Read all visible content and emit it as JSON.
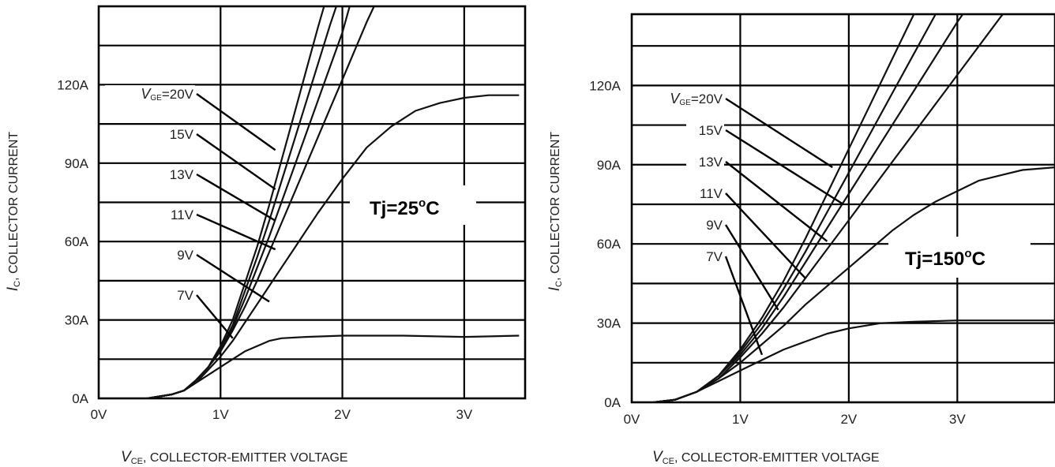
{
  "chart_data": [
    {
      "type": "line",
      "temperature_label": {
        "main": "Tj=25",
        "sup": "o",
        "unit": "C"
      },
      "xlabel": {
        "sym": "V",
        "sub": "CE",
        "text": ", COLLECTOR-EMITTER VOLTAGE"
      },
      "ylabel": {
        "sym": "I",
        "sub": "C",
        "text": ", COLLECTOR CURRENT"
      },
      "xlim": [
        0,
        3.5
      ],
      "ylim": [
        0,
        150
      ],
      "x_ticks": [
        {
          "v": 0,
          "label": "0V"
        },
        {
          "v": 1,
          "label": "1V"
        },
        {
          "v": 2,
          "label": "2V"
        },
        {
          "v": 3,
          "label": "3V"
        }
      ],
      "y_ticks": [
        {
          "v": 0,
          "label": "0A"
        },
        {
          "v": 30,
          "label": "30A"
        },
        {
          "v": 60,
          "label": "60A"
        },
        {
          "v": 90,
          "label": "90A"
        },
        {
          "v": 120,
          "label": "120A"
        }
      ],
      "grid_x": [
        1,
        2,
        3
      ],
      "grid_y": [
        15,
        30,
        45,
        60,
        75,
        90,
        105,
        120,
        135
      ],
      "series": [
        {
          "name": "20V",
          "points": [
            [
              0.4,
              0
            ],
            [
              0.6,
              1.5
            ],
            [
              0.7,
              3
            ],
            [
              0.8,
              7
            ],
            [
              0.9,
              12
            ],
            [
              1.0,
              20
            ],
            [
              1.1,
              30
            ],
            [
              1.2,
              44
            ],
            [
              1.3,
              58
            ],
            [
              1.4,
              74
            ],
            [
              1.5,
              91
            ],
            [
              1.6,
              108
            ],
            [
              1.7,
              125
            ],
            [
              1.8,
              142
            ],
            [
              1.85,
              150
            ]
          ]
        },
        {
          "name": "15V",
          "points": [
            [
              0.4,
              0
            ],
            [
              0.6,
              1.5
            ],
            [
              0.7,
              3
            ],
            [
              0.8,
              7
            ],
            [
              0.9,
              12
            ],
            [
              1.0,
              19
            ],
            [
              1.1,
              28
            ],
            [
              1.2,
              41
            ],
            [
              1.3,
              54
            ],
            [
              1.4,
              68
            ],
            [
              1.5,
              83
            ],
            [
              1.6,
              98
            ],
            [
              1.7,
              113
            ],
            [
              1.8,
              128
            ],
            [
              1.9,
              143
            ],
            [
              1.95,
              150
            ]
          ]
        },
        {
          "name": "13V",
          "points": [
            [
              0.4,
              0
            ],
            [
              0.6,
              1.5
            ],
            [
              0.7,
              3
            ],
            [
              0.8,
              7
            ],
            [
              0.9,
              12
            ],
            [
              1.0,
              19
            ],
            [
              1.1,
              27
            ],
            [
              1.2,
              38
            ],
            [
              1.3,
              50
            ],
            [
              1.4,
              62
            ],
            [
              1.5,
              75
            ],
            [
              1.6,
              88
            ],
            [
              1.7,
              101
            ],
            [
              1.8,
              114
            ],
            [
              1.9,
              127
            ],
            [
              2.0,
              140
            ],
            [
              2.06,
              150
            ]
          ]
        },
        {
          "name": "11V",
          "points": [
            [
              0.4,
              0
            ],
            [
              0.6,
              1.5
            ],
            [
              0.7,
              3
            ],
            [
              0.8,
              7
            ],
            [
              0.9,
              12
            ],
            [
              1.0,
              18
            ],
            [
              1.1,
              26
            ],
            [
              1.2,
              35
            ],
            [
              1.3,
              45
            ],
            [
              1.4,
              56
            ],
            [
              1.5,
              67
            ],
            [
              1.6,
              78
            ],
            [
              1.7,
              89
            ],
            [
              1.8,
              100
            ],
            [
              1.9,
              111
            ],
            [
              2.0,
              122
            ],
            [
              2.1,
              133
            ],
            [
              2.2,
              144
            ],
            [
              2.26,
              150
            ]
          ]
        },
        {
          "name": "9V",
          "points": [
            [
              0.4,
              0
            ],
            [
              0.6,
              1.5
            ],
            [
              0.7,
              3
            ],
            [
              0.8,
              6
            ],
            [
              0.9,
              11
            ],
            [
              1.0,
              16
            ],
            [
              1.1,
              22
            ],
            [
              1.2,
              29
            ],
            [
              1.3,
              36
            ],
            [
              1.4,
              43
            ],
            [
              1.5,
              50
            ],
            [
              1.6,
              57
            ],
            [
              1.7,
              64
            ],
            [
              1.8,
              71
            ],
            [
              2.0,
              84
            ],
            [
              2.2,
              96
            ],
            [
              2.4,
              104
            ],
            [
              2.6,
              110
            ],
            [
              2.8,
              113
            ],
            [
              3.0,
              115
            ],
            [
              3.2,
              116
            ],
            [
              3.45,
              116
            ]
          ]
        },
        {
          "name": "7V",
          "points": [
            [
              0.4,
              0
            ],
            [
              0.6,
              1.5
            ],
            [
              0.7,
              3
            ],
            [
              0.8,
              6
            ],
            [
              0.9,
              9
            ],
            [
              1.0,
              12
            ],
            [
              1.1,
              15
            ],
            [
              1.2,
              18
            ],
            [
              1.3,
              20
            ],
            [
              1.4,
              22
            ],
            [
              1.5,
              23
            ],
            [
              1.7,
              23.5
            ],
            [
              2.0,
              24
            ],
            [
              2.5,
              24
            ],
            [
              3.0,
              23.5
            ],
            [
              3.45,
              24
            ]
          ]
        }
      ],
      "labels": [
        {
          "prefix": {
            "sym": "V",
            "sub": "GE",
            "eq": "="
          },
          "text": "20V",
          "leader_end": [
            1.45,
            95
          ]
        },
        {
          "text": "15V",
          "leader_end": [
            1.45,
            80
          ]
        },
        {
          "text": "13V",
          "leader_end": [
            1.45,
            68
          ]
        },
        {
          "text": "11V",
          "leader_end": [
            1.45,
            57
          ]
        },
        {
          "text": "9V",
          "leader_end": [
            1.4,
            37
          ]
        },
        {
          "text": "7V",
          "leader_end": [
            1.1,
            23
          ]
        }
      ]
    },
    {
      "type": "line",
      "temperature_label": {
        "main": "Tj=150",
        "sup": "o",
        "unit": "C"
      },
      "xlabel": {
        "sym": "V",
        "sub": "CE",
        "text": ", COLLECTOR-EMITTER VOLTAGE"
      },
      "ylabel": {
        "sym": "I",
        "sub": "C",
        "text": ", COLLECTOR CURRENT"
      },
      "xlim": [
        0,
        3.9
      ],
      "ylim": [
        0,
        147
      ],
      "x_ticks": [
        {
          "v": 0,
          "label": "0V"
        },
        {
          "v": 1,
          "label": "1V"
        },
        {
          "v": 2,
          "label": "2V"
        },
        {
          "v": 3,
          "label": "3V"
        }
      ],
      "y_ticks": [
        {
          "v": 0,
          "label": "0A"
        },
        {
          "v": 30,
          "label": "30A"
        },
        {
          "v": 60,
          "label": "60A"
        },
        {
          "v": 90,
          "label": "90A"
        },
        {
          "v": 120,
          "label": "120A"
        }
      ],
      "grid_x": [
        1,
        2,
        3
      ],
      "grid_y": [
        15,
        30,
        45,
        60,
        75,
        90,
        105,
        120,
        135
      ],
      "series": [
        {
          "name": "20V",
          "points": [
            [
              0.2,
              0
            ],
            [
              0.4,
              1
            ],
            [
              0.6,
              4
            ],
            [
              0.8,
              10
            ],
            [
              1.0,
              20
            ],
            [
              1.2,
              32
            ],
            [
              1.4,
              46
            ],
            [
              1.6,
              62
            ],
            [
              1.8,
              79
            ],
            [
              2.0,
              96
            ],
            [
              2.2,
              113
            ],
            [
              2.4,
              130
            ],
            [
              2.6,
              147
            ]
          ]
        },
        {
          "name": "15V",
          "points": [
            [
              0.2,
              0
            ],
            [
              0.4,
              1
            ],
            [
              0.6,
              4
            ],
            [
              0.8,
              10
            ],
            [
              1.0,
              19
            ],
            [
              1.2,
              30
            ],
            [
              1.4,
              43
            ],
            [
              1.6,
              57
            ],
            [
              1.8,
              72
            ],
            [
              2.0,
              87
            ],
            [
              2.2,
              102
            ],
            [
              2.4,
              117
            ],
            [
              2.6,
              132
            ],
            [
              2.8,
              147
            ]
          ]
        },
        {
          "name": "13V",
          "points": [
            [
              0.2,
              0
            ],
            [
              0.4,
              1
            ],
            [
              0.6,
              4
            ],
            [
              0.8,
              10
            ],
            [
              1.0,
              18
            ],
            [
              1.2,
              28
            ],
            [
              1.4,
              40
            ],
            [
              1.6,
              53
            ],
            [
              1.8,
              66
            ],
            [
              2.0,
              79
            ],
            [
              2.2,
              92
            ],
            [
              2.4,
              105
            ],
            [
              2.6,
              118
            ],
            [
              2.8,
              131
            ],
            [
              3.0,
              144
            ],
            [
              3.05,
              147
            ]
          ]
        },
        {
          "name": "11V",
          "points": [
            [
              0.2,
              0
            ],
            [
              0.4,
              1
            ],
            [
              0.6,
              4
            ],
            [
              0.8,
              9
            ],
            [
              1.0,
              17
            ],
            [
              1.2,
              26
            ],
            [
              1.4,
              36
            ],
            [
              1.6,
              47
            ],
            [
              1.8,
              58
            ],
            [
              2.0,
              69
            ],
            [
              2.2,
              80
            ],
            [
              2.4,
              91
            ],
            [
              2.6,
              102
            ],
            [
              2.8,
              113
            ],
            [
              3.0,
              124
            ],
            [
              3.2,
              135
            ],
            [
              3.4,
              146
            ],
            [
              3.42,
              147
            ]
          ]
        },
        {
          "name": "9V",
          "points": [
            [
              0.2,
              0
            ],
            [
              0.4,
              1
            ],
            [
              0.6,
              4
            ],
            [
              0.8,
              9
            ],
            [
              1.0,
              15
            ],
            [
              1.2,
              22
            ],
            [
              1.4,
              29
            ],
            [
              1.6,
              37
            ],
            [
              1.8,
              44
            ],
            [
              2.0,
              51
            ],
            [
              2.2,
              58
            ],
            [
              2.4,
              65
            ],
            [
              2.6,
              71
            ],
            [
              2.8,
              76
            ],
            [
              3.0,
              80
            ],
            [
              3.2,
              84
            ],
            [
              3.4,
              86
            ],
            [
              3.6,
              88
            ],
            [
              3.9,
              89
            ]
          ]
        },
        {
          "name": "7V",
          "points": [
            [
              0.2,
              0
            ],
            [
              0.4,
              1
            ],
            [
              0.6,
              4
            ],
            [
              0.8,
              8
            ],
            [
              1.0,
              12
            ],
            [
              1.2,
              16
            ],
            [
              1.4,
              20
            ],
            [
              1.6,
              23
            ],
            [
              1.8,
              26
            ],
            [
              2.0,
              28
            ],
            [
              2.3,
              30
            ],
            [
              2.6,
              30.5
            ],
            [
              3.0,
              31
            ],
            [
              3.5,
              31
            ],
            [
              3.9,
              31
            ]
          ]
        }
      ],
      "labels": [
        {
          "prefix": {
            "sym": "V",
            "sub": "GE",
            "eq": "="
          },
          "text": "20V",
          "leader_end": [
            1.85,
            89
          ]
        },
        {
          "text": "15V",
          "leader_end": [
            1.95,
            75
          ]
        },
        {
          "text": "13V",
          "leader_end": [
            1.8,
            61
          ]
        },
        {
          "text": "11V",
          "leader_end": [
            1.6,
            47
          ]
        },
        {
          "text": "9V",
          "leader_end": [
            1.35,
            35
          ]
        },
        {
          "text": "7V",
          "leader_end": [
            1.2,
            18
          ]
        }
      ]
    }
  ]
}
